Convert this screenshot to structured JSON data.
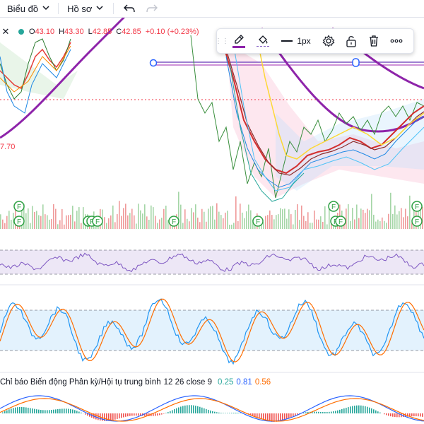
{
  "header": {
    "chart_menu_label": "Biểu đồ",
    "profile_menu_label": "Hồ sơ"
  },
  "legend": {
    "open_key": "O",
    "open_value": "43.10",
    "high_key": "H",
    "high_value": "43.30",
    "low_key": "L",
    "low_value": "42.85",
    "close_key": "C",
    "close_value": "42.85",
    "change": "+0.10 (+0.23%)",
    "up_color": "#f23645"
  },
  "price_axis_fragment": "7.70",
  "drawing_toolbar": {
    "line_width_label": "1px",
    "icons": [
      "drag-handle-icon",
      "pencil-icon",
      "paint-bucket-icon",
      "line-width-icon",
      "gear-icon",
      "unlock-icon",
      "trash-icon",
      "more-icon"
    ]
  },
  "events_marker_label": "F",
  "macd": {
    "title": "Chỉ báo Biến động Phân kỳ/Hội tụ trung bình",
    "params": "12 26 close 9",
    "histogram_value": "0.25",
    "macd_value": "0.81",
    "signal_value": "0.56",
    "histogram_color": "#26a69a",
    "macd_color": "#2962ff",
    "signal_color": "#ff6d00"
  },
  "colors": {
    "rsi_band": "#ede7f6",
    "rsi_line": "#7e57c2",
    "stoch_band": "#e3f2fd",
    "stoch_k": "#2196f3",
    "stoch_d": "#ff6d00",
    "trend_purple": "#8e24aa",
    "ma_red": "#e53935",
    "ma_green": "#2e7d32",
    "ma_blue": "#1e88e5"
  }
}
